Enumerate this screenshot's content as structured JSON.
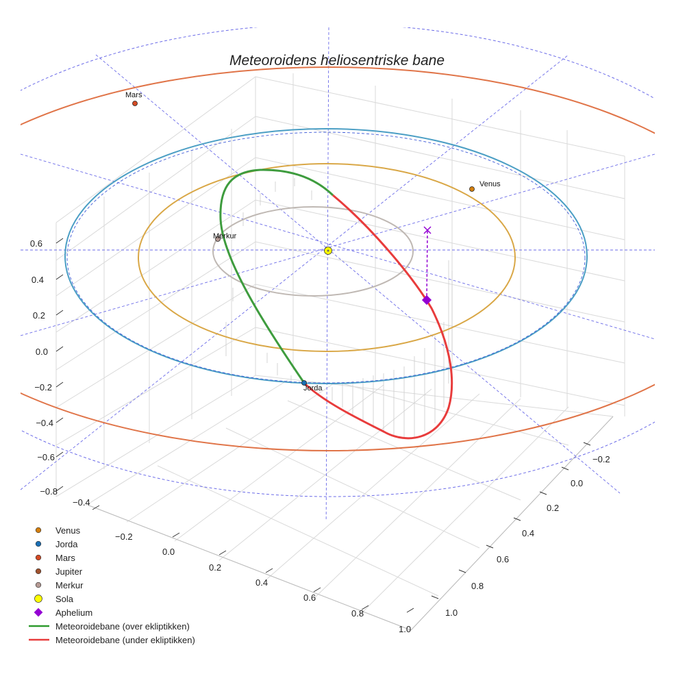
{
  "chart_data": {
    "type": "3d-orbit-plot",
    "title": "Meteoroidens heliosentriske bane",
    "axes": {
      "z_ticks": [
        "0.6",
        "0.4",
        "0.2",
        "0.0",
        "−0.2",
        "−0.4",
        "−0.6",
        "−0.8"
      ],
      "y_ticks": [
        "−0.4",
        "−0.2",
        "0.0",
        "0.2",
        "0.4",
        "0.6",
        "0.8",
        "1.0"
      ],
      "x_ticks": [
        "−0.2",
        "0.0",
        "0.2",
        "0.4",
        "0.6",
        "0.8",
        "1.0"
      ]
    },
    "orbits": [
      {
        "name": "Merkur",
        "a_au": 0.39,
        "color": "#bfb8b3"
      },
      {
        "name": "Venus",
        "a_au": 0.72,
        "color": "#d9a746"
      },
      {
        "name": "Jorda",
        "a_au": 1.0,
        "color": "#4a9ec4"
      },
      {
        "name": "Mars",
        "a_au": 1.52,
        "color": "#e07448"
      }
    ],
    "planet_labels": {
      "mars": "Mars",
      "venus": "Venus",
      "merkur": "Merkur",
      "jorda": "Jorda"
    },
    "meteoroid": {
      "above_label": "Meteoroidebane (over ekliptikken)",
      "below_label": "Meteoroidebane (under ekliptikken)",
      "above_color": "#3e9c3e",
      "below_color": "#e83c3c"
    },
    "colors": {
      "venus": "#d47f0f",
      "jorda": "#1a6fb5",
      "mars": "#d44a24",
      "jupiter": "#a0522d",
      "merkur": "#b59a94",
      "sola": "#ffff00",
      "aphelium": "#9400d3",
      "reference_lines": "#6a6ae8"
    },
    "legend": [
      {
        "label": "Venus",
        "symbol": "dot",
        "color": "#d47f0f"
      },
      {
        "label": "Jorda",
        "symbol": "dot",
        "color": "#1a6fb5"
      },
      {
        "label": "Mars",
        "symbol": "dot",
        "color": "#d44a24"
      },
      {
        "label": "Jupiter",
        "symbol": "dot",
        "color": "#a0522d"
      },
      {
        "label": "Merkur",
        "symbol": "dot",
        "color": "#b59a94"
      },
      {
        "label": "Sola",
        "symbol": "big-dot",
        "color": "#ffff00"
      },
      {
        "label": "Aphelium",
        "symbol": "diamond",
        "color": "#9400d3"
      },
      {
        "label": "Meteoroidebane (over ekliptikken)",
        "symbol": "line",
        "color": "#2e9b2e"
      },
      {
        "label": "Meteoroidebane (under ekliptikken)",
        "symbol": "line",
        "color": "#e83c3c"
      }
    ]
  }
}
